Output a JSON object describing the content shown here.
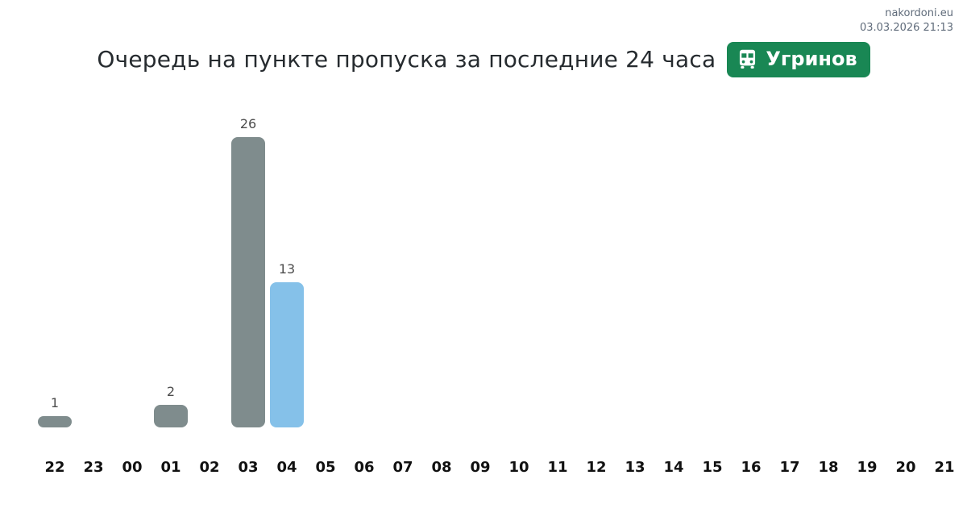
{
  "meta": {
    "site": "nakordoni.eu",
    "timestamp": "03.03.2026 21:13"
  },
  "header": {
    "title": "Очередь на пункте пропуска за последние 24 часа",
    "checkpoint": "Угринов",
    "badge_color": "#198754"
  },
  "chart_data": {
    "type": "bar",
    "title": "Очередь на пункте пропуска за последние 24 часа",
    "xlabel": "",
    "ylabel": "",
    "categories": [
      "22",
      "23",
      "00",
      "01",
      "02",
      "03",
      "04",
      "05",
      "06",
      "07",
      "08",
      "09",
      "10",
      "11",
      "12",
      "13",
      "14",
      "15",
      "16",
      "17",
      "18",
      "19",
      "20",
      "21"
    ],
    "values": [
      1,
      0,
      0,
      2,
      0,
      26,
      13,
      0,
      0,
      0,
      0,
      0,
      0,
      0,
      0,
      0,
      0,
      0,
      0,
      0,
      0,
      0,
      0,
      0
    ],
    "ylim": [
      0,
      26
    ],
    "value_labels": true,
    "grid": false,
    "legend": false,
    "colors": {
      "bar_default": "#7f8c8d",
      "bar_highlight": "#85c1e9",
      "value_label": "#4d4d4d",
      "tick_label": "#111111"
    },
    "highlight_category": "04"
  }
}
